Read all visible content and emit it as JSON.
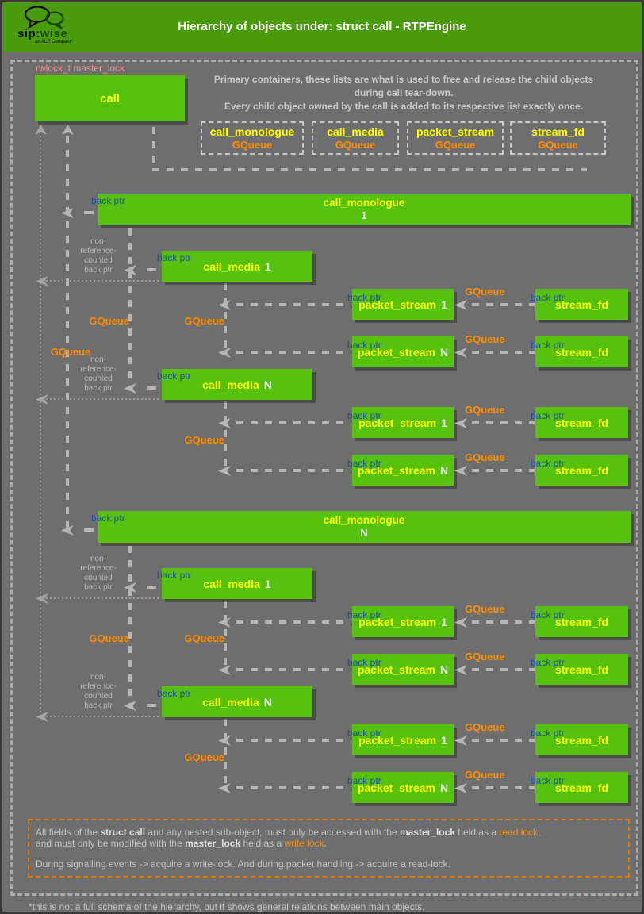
{
  "header": {
    "title": "Hierarchy of objects under: struct call - RTPEngine",
    "logo": {
      "sip": "sip:",
      "wise": "wise",
      "tagline": "an ALE Company"
    }
  },
  "intro": {
    "line1": "Primary containers, these lists are what is used to free and release the child objects",
    "line2": "during call tear-down.",
    "line3": "Every child object owned by the call is added to its respective list exactly once."
  },
  "diagram": {
    "rwlock_label": "rwlock_t master_lock",
    "call_label": "call",
    "labels": {
      "gqueue": "GQueue",
      "back_ptr": "back ptr",
      "non_ref_lines": [
        "non-",
        "reference-",
        "counted",
        "back ptr"
      ]
    },
    "queue_boxes": [
      {
        "title": "call_monologue",
        "type": "GQueue"
      },
      {
        "title": "call_media",
        "type": "GQueue"
      },
      {
        "title": "packet_stream",
        "type": "GQueue"
      },
      {
        "title": "stream_fd",
        "type": "GQueue"
      }
    ],
    "monologue_title": "call_monologue",
    "media_title": "call_media",
    "packet_title": "packet_stream",
    "stream_title": "stream_fd",
    "indices": {
      "first": "1",
      "last": "N"
    }
  },
  "note": {
    "l1": {
      "a": "All fields of the ",
      "b": "struct call",
      "c": " and any nested sub-object, must only be accessed with the ",
      "d": "master_lock",
      "e": " held as a ",
      "f": "read lock",
      "g": ","
    },
    "l2": {
      "a": "and must only be modified with the ",
      "b": "master_lock",
      "c": " held as a ",
      "d": "write lock",
      "e": "."
    },
    "l3": "During signalling events -> acquire a write-lock. And during packet handling -> acquire a read-lock."
  },
  "footer": "*this is not a full schema of the hierarchy, but it shows general relations between main objects.",
  "colors": {
    "header_green": "#4a9b0c",
    "box_green": "#56c20e",
    "yellow": "#feff00",
    "orange": "#ff8c00",
    "back_ptr_blue": "#1d4fa8",
    "pink": "#f19090",
    "line_gray": "#b6b6b6",
    "background_gray": "#6e6e6e"
  }
}
